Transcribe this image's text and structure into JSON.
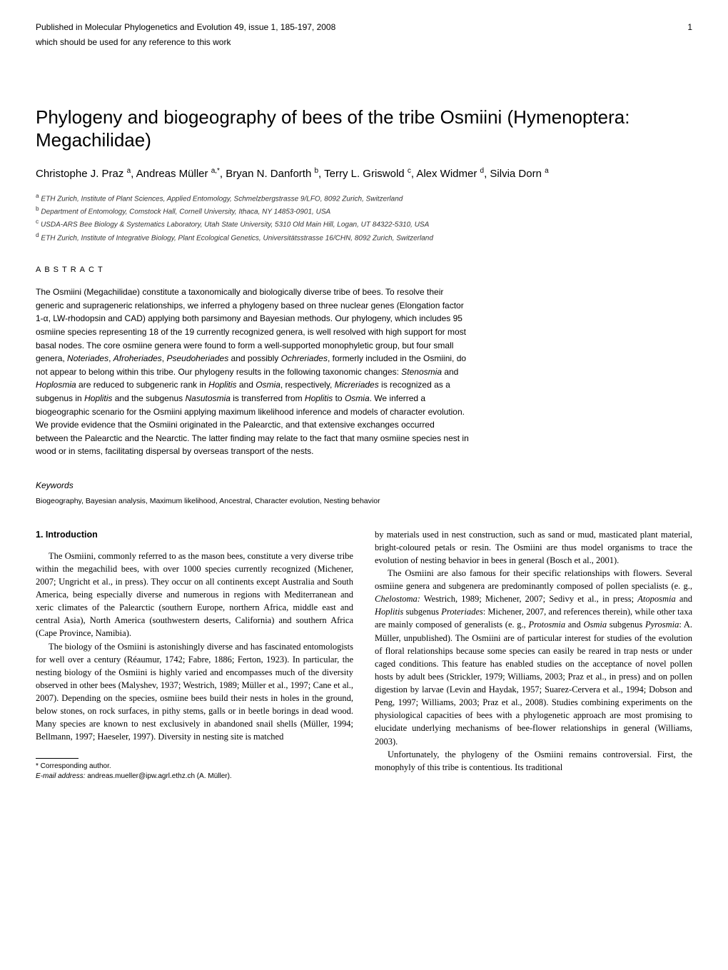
{
  "header": {
    "published_line": "Published in Molecular Phylogenetics and Evolution 49, issue 1, 185-197, 2008",
    "sub_line": "which should be used for any reference to this work",
    "page_number": "1"
  },
  "title": "Phylogeny and biogeography of bees of the tribe Osmiini (Hymenoptera: Megachilidae)",
  "authors_html": "Christophe J. Praz <sup>a</sup>, Andreas Müller <sup>a,*</sup>, Bryan N. Danforth <sup>b</sup>, Terry L. Griswold <sup>c</sup>, Alex Widmer <sup>d</sup>, Silvia Dorn <sup>a</sup>",
  "affiliations": [
    {
      "marker": "a",
      "text": "ETH Zurich, Institute of Plant Sciences, Applied Entomology, Schmelzbergstrasse 9/LFO, 8092 Zurich, Switzerland"
    },
    {
      "marker": "b",
      "text": "Department of Entomology, Comstock Hall, Cornell University, Ithaca, NY 14853-0901, USA"
    },
    {
      "marker": "c",
      "text": "USDA-ARS Bee Biology & Systematics Laboratory, Utah State University, 5310 Old Main Hill, Logan, UT 84322-5310, USA"
    },
    {
      "marker": "d",
      "text": "ETH Zurich, Institute of Integrative Biology, Plant Ecological Genetics, Universitätsstrasse 16/CHN, 8092 Zurich, Switzerland"
    }
  ],
  "abstract": {
    "label": "ABSTRACT",
    "body_html": "The Osmiini (Megachilidae) constitute a taxonomically and biologically diverse tribe of bees. To resolve their generic and suprageneric relationships, we inferred a phylogeny based on three nuclear genes (Elongation factor 1-α, LW-rhodopsin and CAD) applying both parsimony and Bayesian methods. Our phylogeny, which includes 95 osmiine species representing 18 of the 19 currently recognized genera, is well resolved with high support for most basal nodes. The core osmiine genera were found to form a well-supported monophyletic group, but four small genera, <span class=\"italic\">Noteriades</span>, <span class=\"italic\">Afroheriades</span>, <span class=\"italic\">Pseudoheriades</span> and possibly <span class=\"italic\">Ochreriades</span>, formerly included in the Osmiini, do not appear to belong within this tribe. Our phylogeny results in the following taxonomic changes: <span class=\"italic\">Stenosmia</span> and <span class=\"italic\">Hoplosmia</span> are reduced to subgeneric rank in <span class=\"italic\">Hoplitis</span> and <span class=\"italic\">Osmia</span>, respectively, <span class=\"italic\">Micreriades</span> is recognized as a subgenus in <span class=\"italic\">Hoplitis</span> and the subgenus <span class=\"italic\">Nasutosmia</span> is transferred from <span class=\"italic\">Hoplitis</span> to <span class=\"italic\">Osmia</span>. We inferred a biogeographic scenario for the Osmiini applying maximum likelihood inference and models of character evolution. We provide evidence that the Osmiini originated in the Palearctic, and that extensive exchanges occurred between the Palearctic and the Nearctic. The latter finding may relate to the fact that many osmiine species nest in wood or in stems, facilitating dispersal by overseas transport of the nests."
  },
  "keywords": {
    "label": "Keywords",
    "items": [
      "Biogeography",
      "Bayesian analysis",
      "Maximum likelihood",
      "Ancestral",
      "Character evolution",
      "Nesting behavior"
    ]
  },
  "section1": {
    "heading": "1. Introduction",
    "paragraphs": [
      "The Osmiini, commonly referred to as the mason bees, constitute a very diverse tribe within the megachilid bees, with over 1000 species currently recognized (Michener, 2007; Ungricht et al., in press). They occur on all continents except Australia and South America, being especially diverse and numerous in regions with Mediterranean and xeric climates of the Palearctic (southern Europe, northern Africa, middle east and central Asia), North America (southwestern deserts, California) and southern Africa (Cape Province, Namibia).",
      "The biology of the Osmiini is astonishingly diverse and has fascinated entomologists for well over a century (Réaumur, 1742; Fabre, 1886; Ferton, 1923). In particular, the nesting biology of the Osmiini is highly varied and encompasses much of the diversity observed in other bees (Malyshev, 1937; Westrich, 1989; Müller et al., 1997; Cane et al., 2007). Depending on the species, osmiine bees build their nests in holes in the ground, below stones, on rock surfaces, in pithy stems, galls or in beetle borings in dead wood. Many species are known to nest exclusively in abandoned snail shells (Müller, 1994; Bellmann, 1997; Haeseler, 1997). Diversity in nesting site is matched",
      "by materials used in nest construction, such as sand or mud, masticated plant material, bright-coloured petals or resin. The Osmiini are thus model organisms to trace the evolution of nesting behavior in bees in general (Bosch et al., 2001).",
      "The Osmiini are also famous for their specific relationships with flowers. Several osmiine genera and subgenera are predominantly composed of pollen specialists (e. g., <span class=\"italic\">Chelostoma:</span> Westrich, 1989; Michener, 2007; Sedivy et al., in press; <span class=\"italic\">Atoposmia</span> and <span class=\"italic\">Hoplitis</span> subgenus <span class=\"italic\">Proteriades</span>: Michener, 2007, and references therein), while other taxa are mainly composed of generalists (e. g., <span class=\"italic\">Protosmia</span> and <span class=\"italic\">Osmia</span> subgenus <span class=\"italic\">Pyrosmia</span>: A. Müller, unpublished). The Osmiini are of particular interest for studies of the evolution of floral relationships because some species can easily be reared in trap nests or under caged conditions. This feature has enabled studies on the acceptance of novel pollen hosts by adult bees (Strickler, 1979; Williams, 2003; Praz et al., in press) and on pollen digestion by larvae (Levin and Haydak, 1957; Suarez-Cervera et al., 1994; Dobson and Peng, 1997; Williams, 2003; Praz et al., 2008). Studies combining experiments on the physiological capacities of bees with a phylogenetic approach are most promising to elucidate underlying mechanisms of bee-flower relationships in general (Williams, 2003).",
      "Unfortunately, the phylogeny of the Osmiini remains controversial. First, the monophyly of this tribe is contentious. Its traditional"
    ]
  },
  "footnote": {
    "corresponding": "* Corresponding author.",
    "email_label": "E-mail address:",
    "email": "andreas.mueller@ipw.agrl.ethz.ch (A. Müller)."
  },
  "style": {
    "background_color": "#ffffff",
    "text_color": "#000000",
    "title_fontsize": 26,
    "authors_fontsize": 15,
    "affil_fontsize": 10,
    "abstract_fontsize": 12,
    "body_fontsize": 12.5,
    "column_gap": 30
  }
}
